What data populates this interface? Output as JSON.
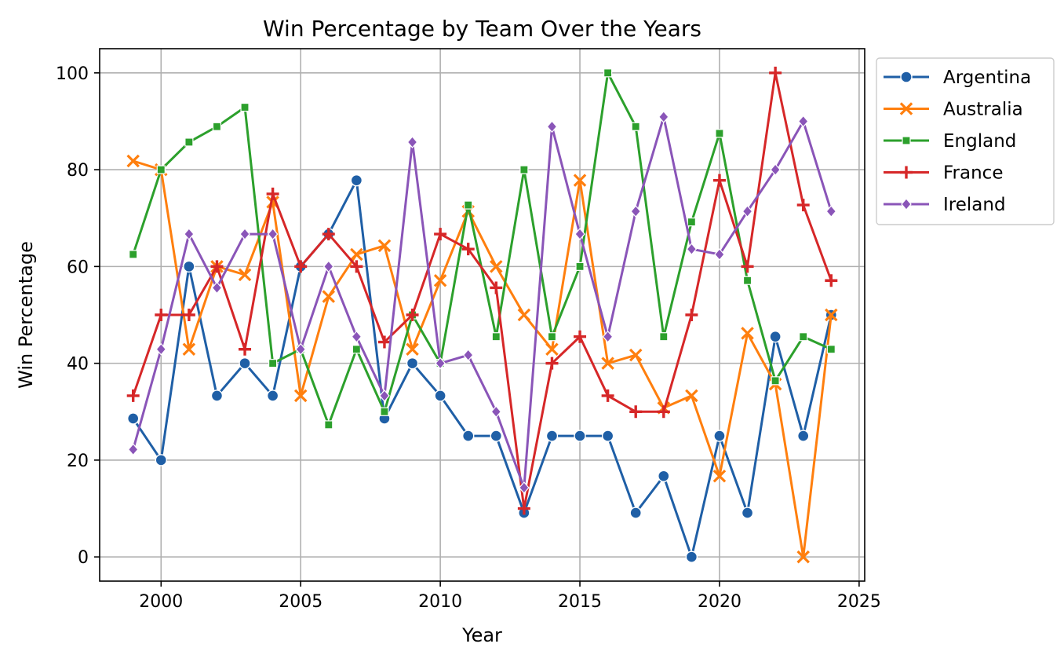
{
  "chart_data": {
    "type": "line",
    "title": "Win Percentage by Team Over the Years",
    "xlabel": "Year",
    "ylabel": "Win Percentage",
    "xlim": [
      1997.8,
      2025.2
    ],
    "ylim": [
      -5,
      105
    ],
    "xticks": [
      2000,
      2005,
      2010,
      2015,
      2020,
      2025
    ],
    "yticks": [
      0,
      20,
      40,
      60,
      80,
      100
    ],
    "grid": true,
    "legend_position": "outside-top-right",
    "x": [
      1999,
      2000,
      2001,
      2002,
      2003,
      2004,
      2005,
      2006,
      2007,
      2008,
      2009,
      2010,
      2011,
      2012,
      2013,
      2014,
      2015,
      2016,
      2017,
      2018,
      2019,
      2020,
      2021,
      2022,
      2023,
      2024
    ],
    "series": [
      {
        "name": "Argentina",
        "color": "#1f5fa6",
        "marker": "circle",
        "values": [
          28.6,
          20.0,
          60.0,
          33.3,
          40.0,
          33.3,
          60.0,
          66.7,
          77.8,
          28.6,
          40.0,
          33.3,
          25.0,
          25.0,
          9.1,
          25.0,
          25.0,
          25.0,
          9.1,
          16.7,
          0.0,
          25.0,
          9.1,
          45.5,
          25.0,
          50.0
        ]
      },
      {
        "name": "Australia",
        "color": "#ff7f0e",
        "marker": "x",
        "values": [
          81.8,
          80.0,
          42.9,
          60.0,
          58.3,
          73.3,
          33.3,
          53.8,
          62.5,
          64.3,
          42.9,
          57.1,
          71.4,
          60.0,
          50.0,
          42.9,
          77.8,
          40.0,
          41.7,
          30.8,
          33.3,
          16.7,
          46.2,
          35.7,
          0.0,
          50.0
        ]
      },
      {
        "name": "England",
        "color": "#2ca02c",
        "marker": "square",
        "values": [
          62.5,
          80.0,
          85.7,
          88.9,
          92.9,
          40.0,
          42.9,
          27.3,
          42.9,
          30.0,
          50.0,
          40.0,
          72.7,
          45.5,
          80.0,
          45.5,
          60.0,
          100.0,
          88.9,
          45.5,
          69.2,
          87.5,
          57.1,
          36.4,
          45.5,
          42.9
        ]
      },
      {
        "name": "France",
        "color": "#d62728",
        "marker": "plus",
        "values": [
          33.3,
          50.0,
          50.0,
          60.0,
          42.9,
          75.0,
          60.0,
          66.7,
          60.0,
          44.4,
          50.0,
          66.7,
          63.6,
          55.6,
          10.0,
          40.0,
          45.5,
          33.3,
          30.0,
          30.0,
          50.0,
          77.8,
          60.0,
          100.0,
          72.7,
          57.1
        ]
      },
      {
        "name": "Ireland",
        "color": "#8a55b8",
        "marker": "diamond",
        "values": [
          22.2,
          42.9,
          66.7,
          55.6,
          66.7,
          66.7,
          42.9,
          60.0,
          45.5,
          33.3,
          85.7,
          40.0,
          41.7,
          30.0,
          14.3,
          88.9,
          66.7,
          45.5,
          71.4,
          90.9,
          63.6,
          62.5,
          71.4,
          80.0,
          90.0,
          71.4
        ]
      }
    ]
  }
}
